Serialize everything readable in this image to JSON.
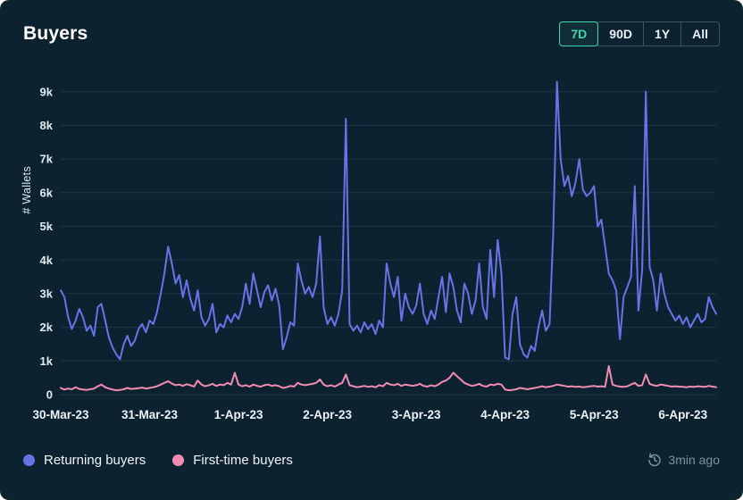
{
  "header": {
    "title": "Buyers",
    "ranges": [
      {
        "label": "7D",
        "selected": true
      },
      {
        "label": "90D",
        "selected": false
      },
      {
        "label": "1Y",
        "selected": false
      },
      {
        "label": "All",
        "selected": false
      }
    ]
  },
  "legend": [
    {
      "label": "Returning buyers",
      "color": "#6674e8"
    },
    {
      "label": "First-time buyers",
      "color": "#f28db2"
    }
  ],
  "footer": {
    "updated": "3min ago"
  },
  "colors": {
    "background": "#0d2231",
    "accent_selected": "#3fd6a8",
    "returning_line": "#6674e8",
    "first_time_line": "#f28db2",
    "muted_text": "#7e93a2"
  },
  "chart_data": {
    "type": "line",
    "title": "Buyers",
    "xlabel": "",
    "ylabel": "# Wallets",
    "ylim": [
      0,
      9500
    ],
    "grid": "horizontal",
    "legend_position": "bottom",
    "y_ticks": [
      "0",
      "1k",
      "2k",
      "3k",
      "4k",
      "5k",
      "6k",
      "7k",
      "8k",
      "9k"
    ],
    "x_tick_labels": [
      "30-Mar-23",
      "31-Mar-23",
      "1-Apr-23",
      "2-Apr-23",
      "3-Apr-23",
      "4-Apr-23",
      "5-Apr-23",
      "6-Apr-23"
    ],
    "x_tick_indices": [
      0,
      24,
      48,
      72,
      96,
      120,
      144,
      168
    ],
    "x_unit": "hourly",
    "series": [
      {
        "name": "Returning buyers",
        "color": "#6674e8",
        "values": [
          3100,
          2900,
          2300,
          1950,
          2200,
          2550,
          2300,
          1900,
          2050,
          1750,
          2600,
          2700,
          2200,
          1700,
          1400,
          1200,
          1050,
          1500,
          1750,
          1450,
          1600,
          1950,
          2100,
          1850,
          2200,
          2100,
          2450,
          3000,
          3600,
          4400,
          3900,
          3300,
          3550,
          2900,
          3400,
          2850,
          2500,
          3100,
          2300,
          2050,
          2250,
          2700,
          1850,
          2100,
          2000,
          2350,
          2150,
          2400,
          2250,
          2600,
          3300,
          2700,
          3600,
          3100,
          2600,
          3050,
          3250,
          2800,
          3150,
          2650,
          1350,
          1700,
          2150,
          2050,
          3900,
          3400,
          3000,
          3200,
          2900,
          3300,
          4700,
          2600,
          2100,
          2300,
          2050,
          2400,
          3100,
          8200,
          2100,
          1900,
          2050,
          1850,
          2150,
          1950,
          2100,
          1800,
          2200,
          2000,
          3900,
          3300,
          2900,
          3500,
          2200,
          3000,
          2600,
          2400,
          2650,
          3300,
          2400,
          2100,
          2500,
          2250,
          2900,
          3500,
          2450,
          3600,
          3200,
          2500,
          2150,
          3300,
          3000,
          2400,
          2800,
          3900,
          2600,
          2250,
          4300,
          2900,
          4600,
          3600,
          1100,
          1050,
          2400,
          2900,
          1500,
          1200,
          1100,
          1450,
          1300,
          2000,
          2500,
          1900,
          2100,
          4800,
          9300,
          7000,
          6200,
          6500,
          5900,
          6300,
          7000,
          6100,
          5900,
          6000,
          6200,
          5000,
          5200,
          4400,
          3600,
          3400,
          3100,
          1650,
          2900,
          3200,
          3500,
          6200,
          2500,
          3700,
          9000,
          3800,
          3400,
          2500,
          3600,
          3000,
          2600,
          2400,
          2200,
          2350,
          2100,
          2300,
          2000,
          2200,
          2400,
          2150,
          2250,
          2900,
          2600,
          2400
        ]
      },
      {
        "name": "First-time buyers",
        "color": "#f28db2",
        "values": [
          200,
          150,
          180,
          160,
          220,
          170,
          150,
          140,
          160,
          180,
          250,
          300,
          220,
          180,
          150,
          130,
          140,
          160,
          200,
          170,
          180,
          190,
          210,
          180,
          200,
          220,
          250,
          300,
          350,
          400,
          330,
          280,
          300,
          260,
          310,
          280,
          240,
          420,
          300,
          250,
          280,
          320,
          260,
          300,
          280,
          350,
          300,
          650,
          300,
          250,
          280,
          240,
          300,
          260,
          240,
          280,
          300,
          260,
          280,
          250,
          200,
          220,
          260,
          240,
          350,
          300,
          280,
          300,
          320,
          350,
          450,
          300,
          250,
          280,
          240,
          300,
          350,
          600,
          280,
          250,
          220,
          240,
          260,
          230,
          250,
          220,
          280,
          250,
          350,
          300,
          280,
          320,
          260,
          300,
          280,
          260,
          280,
          320,
          260,
          240,
          280,
          250,
          300,
          380,
          420,
          500,
          650,
          550,
          450,
          350,
          300,
          260,
          280,
          320,
          260,
          240,
          300,
          280,
          320,
          300,
          150,
          130,
          140,
          160,
          200,
          180,
          160,
          180,
          200,
          220,
          250,
          220,
          240,
          260,
          300,
          280,
          260,
          240,
          250,
          230,
          240,
          220,
          230,
          250,
          260,
          240,
          250,
          230,
          850,
          300,
          260,
          240,
          230,
          250,
          300,
          350,
          260,
          280,
          600,
          320,
          280,
          260,
          300,
          280,
          260,
          240,
          250,
          240,
          230,
          220,
          240,
          230,
          250,
          240,
          230,
          260,
          240,
          220
        ]
      }
    ]
  }
}
